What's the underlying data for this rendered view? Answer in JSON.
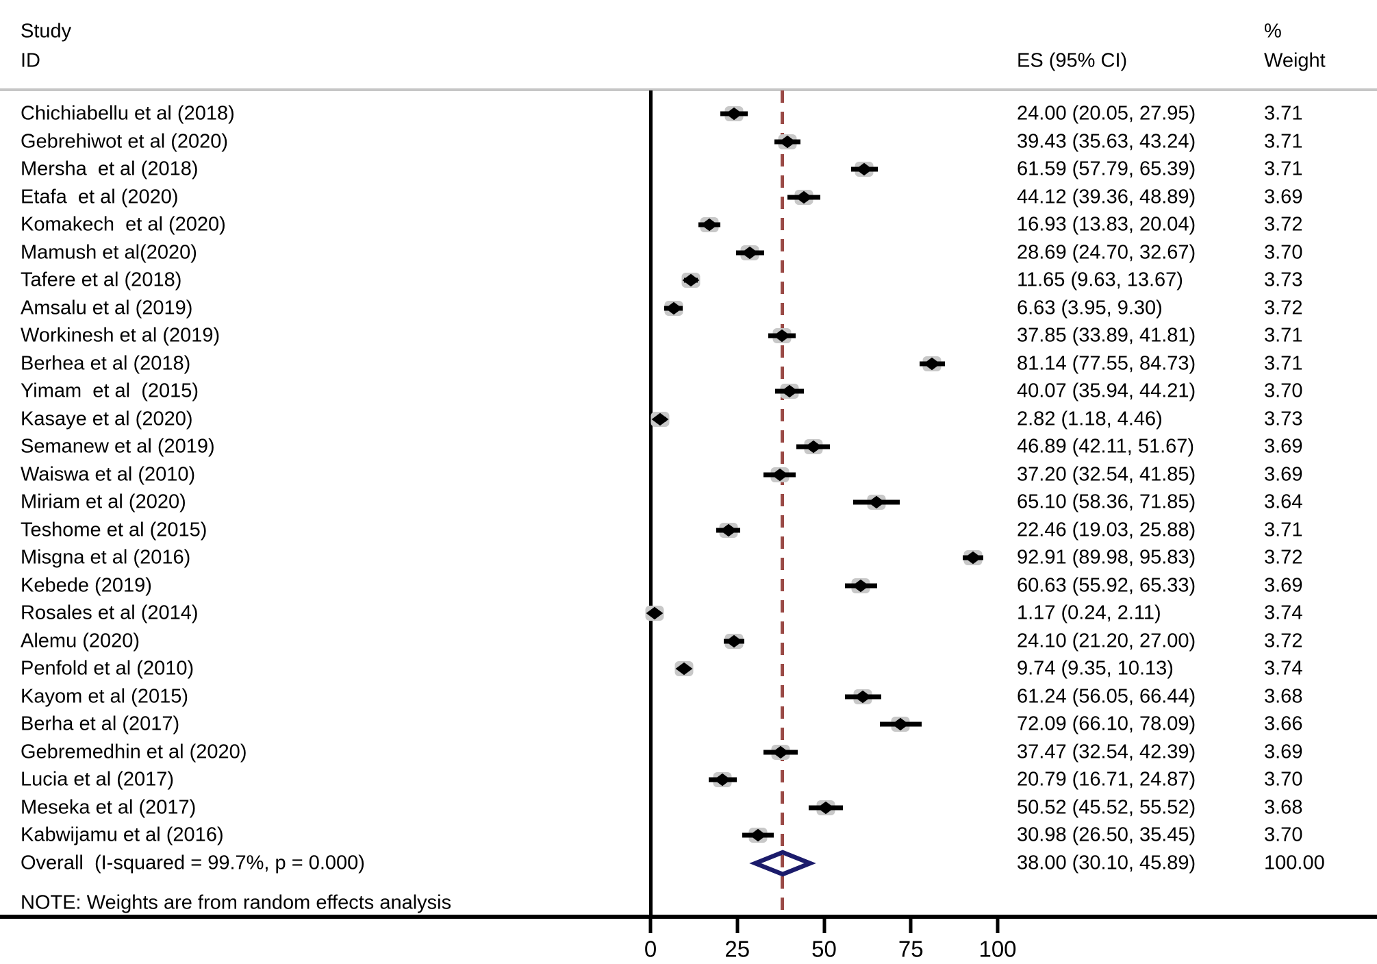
{
  "header": {
    "study_line1": "Study",
    "study_line2": "ID",
    "es_header": "ES (95% CI)",
    "weight_line1": "%",
    "weight_line2": "Weight"
  },
  "note": "NOTE: Weights are from random effects analysis",
  "colors": {
    "header_rule_gray": "#c6c6c6",
    "axis_black": "#000000",
    "marker_black": "#000000",
    "weight_box_gray": "#c8c8c8",
    "ref_line_maroon": "#9a4a46",
    "overall_diamond_navy": "#1b1b6b"
  },
  "chart_data": {
    "type": "forest",
    "title": "",
    "xlabel": "",
    "x_axis": {
      "ticks": [
        0,
        25,
        50,
        75,
        100
      ],
      "range_shown": [
        0,
        100
      ],
      "ref_line_value": 38.0
    },
    "note": "NOTE: Weights are from random effects analysis",
    "studies": [
      {
        "id": "Chichiabellu et al (2018)",
        "es": 24.0,
        "lo": 20.05,
        "hi": 27.95,
        "weight": 3.71
      },
      {
        "id": "Gebrehiwot et al (2020)",
        "es": 39.43,
        "lo": 35.63,
        "hi": 43.24,
        "weight": 3.71
      },
      {
        "id": "Mersha  et al (2018)",
        "es": 61.59,
        "lo": 57.79,
        "hi": 65.39,
        "weight": 3.71
      },
      {
        "id": "Etafa  et al (2020)",
        "es": 44.12,
        "lo": 39.36,
        "hi": 48.89,
        "weight": 3.69
      },
      {
        "id": "Komakech  et al (2020)",
        "es": 16.93,
        "lo": 13.83,
        "hi": 20.04,
        "weight": 3.72
      },
      {
        "id": "Mamush et al(2020)",
        "es": 28.69,
        "lo": 24.7,
        "hi": 32.67,
        "weight": 3.7
      },
      {
        "id": "Tafere et al (2018)",
        "es": 11.65,
        "lo": 9.63,
        "hi": 13.67,
        "weight": 3.73
      },
      {
        "id": "Amsalu et al (2019)",
        "es": 6.63,
        "lo": 3.95,
        "hi": 9.3,
        "weight": 3.72
      },
      {
        "id": "Workinesh et al (2019)",
        "es": 37.85,
        "lo": 33.89,
        "hi": 41.81,
        "weight": 3.71
      },
      {
        "id": "Berhea et al (2018)",
        "es": 81.14,
        "lo": 77.55,
        "hi": 84.73,
        "weight": 3.71
      },
      {
        "id": "Yimam  et al  (2015)",
        "es": 40.07,
        "lo": 35.94,
        "hi": 44.21,
        "weight": 3.7
      },
      {
        "id": "Kasaye et al (2020)",
        "es": 2.82,
        "lo": 1.18,
        "hi": 4.46,
        "weight": 3.73
      },
      {
        "id": "Semanew et al (2019)",
        "es": 46.89,
        "lo": 42.11,
        "hi": 51.67,
        "weight": 3.69
      },
      {
        "id": "Waiswa et al (2010)",
        "es": 37.2,
        "lo": 32.54,
        "hi": 41.85,
        "weight": 3.69
      },
      {
        "id": "Miriam et al (2020)",
        "es": 65.1,
        "lo": 58.36,
        "hi": 71.85,
        "weight": 3.64
      },
      {
        "id": "Teshome et al (2015)",
        "es": 22.46,
        "lo": 19.03,
        "hi": 25.88,
        "weight": 3.71
      },
      {
        "id": "Misgna et al (2016)",
        "es": 92.91,
        "lo": 89.98,
        "hi": 95.83,
        "weight": 3.72
      },
      {
        "id": "Kebede (2019)",
        "es": 60.63,
        "lo": 55.92,
        "hi": 65.33,
        "weight": 3.69
      },
      {
        "id": "Rosales et al (2014)",
        "es": 1.17,
        "lo": 0.24,
        "hi": 2.11,
        "weight": 3.74
      },
      {
        "id": "Alemu (2020)",
        "es": 24.1,
        "lo": 21.2,
        "hi": 27.0,
        "weight": 3.72
      },
      {
        "id": "Penfold et al (2010)",
        "es": 9.74,
        "lo": 9.35,
        "hi": 10.13,
        "weight": 3.74
      },
      {
        "id": "Kayom et al (2015)",
        "es": 61.24,
        "lo": 56.05,
        "hi": 66.44,
        "weight": 3.68
      },
      {
        "id": "Berha et al (2017)",
        "es": 72.09,
        "lo": 66.1,
        "hi": 78.09,
        "weight": 3.66
      },
      {
        "id": "Gebremedhin et al (2020)",
        "es": 37.47,
        "lo": 32.54,
        "hi": 42.39,
        "weight": 3.69
      },
      {
        "id": "Lucia et al (2017)",
        "es": 20.79,
        "lo": 16.71,
        "hi": 24.87,
        "weight": 3.7
      },
      {
        "id": "Meseka et al (2017)",
        "es": 50.52,
        "lo": 45.52,
        "hi": 55.52,
        "weight": 3.68
      },
      {
        "id": "Kabwijamu et al (2016)",
        "es": 30.98,
        "lo": 26.5,
        "hi": 35.45,
        "weight": 3.7
      }
    ],
    "overall": {
      "id": "Overall  (I-squared = 99.7%, p = 0.000)",
      "es": 38.0,
      "lo": 30.1,
      "hi": 45.89,
      "weight": 100.0,
      "heterogeneity_i_squared": "99.7%",
      "p_value": "0.000"
    }
  }
}
